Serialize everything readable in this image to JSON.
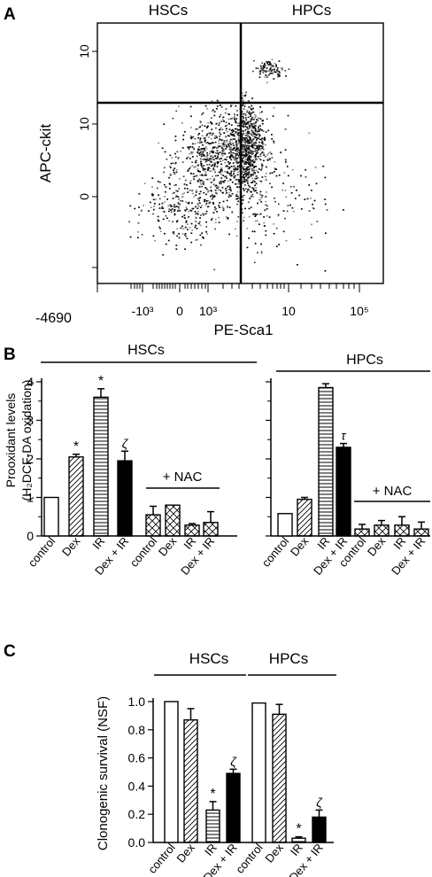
{
  "panels": {
    "A": "A",
    "B": "B",
    "C": "C"
  },
  "chart_data": [
    {
      "panel": "A",
      "type": "scatter",
      "quadrant_labels": [
        "HSCs",
        "HPCs"
      ],
      "xlabel": "PE-Sca1",
      "ylabel": "APC-ckit",
      "x_ticks": [
        "-4690",
        "-10³",
        "0",
        "10³",
        "10",
        "10⁵"
      ],
      "y_ticks": [
        "10",
        "10",
        "0"
      ],
      "grid": false
    },
    {
      "panel": "B-HSCs",
      "type": "bar",
      "ylabel": "Prooxidant levels",
      "ylabel2": "(H₂DCF-DA oxidation)",
      "group_label": "HSCs",
      "sub_label": "+ NAC",
      "categories": [
        "control",
        "Dex",
        "IR",
        "Dex + IR",
        "control",
        "Dex",
        "IR",
        "Dex + IR"
      ],
      "values": [
        1.0,
        2.05,
        3.6,
        1.95,
        0.55,
        0.8,
        0.28,
        0.35
      ],
      "errors": [
        0,
        0.07,
        0.22,
        0.25,
        0.22,
        0,
        0.04,
        0.28
      ],
      "patterns": [
        "open",
        "diagonal",
        "horizontal",
        "solid",
        "crosshatch",
        "crosshatch",
        "crosshatch",
        "crosshatch"
      ],
      "annotations": [
        "",
        "*",
        "*",
        "ζ",
        "",
        "",
        "",
        ""
      ],
      "ylim": [
        0,
        4
      ],
      "yticks": [
        "0",
        "1",
        "2",
        "3",
        "4"
      ]
    },
    {
      "panel": "B-HPCs",
      "type": "bar",
      "group_label": "HPCs",
      "sub_label": "+ NAC",
      "categories": [
        "control",
        "Dex",
        "IR",
        "Dex + IR",
        "control",
        "Dex",
        "IR",
        "Dex + IR"
      ],
      "values": [
        0.58,
        0.95,
        3.85,
        2.3,
        0.18,
        0.28,
        0.28,
        0.18
      ],
      "errors": [
        0,
        0.05,
        0.1,
        0.1,
        0.12,
        0.12,
        0.22,
        0.18
      ],
      "patterns": [
        "open",
        "diagonal",
        "horizontal",
        "solid",
        "crosshatch",
        "crosshatch",
        "crosshatch",
        "crosshatch"
      ],
      "annotations": [
        "",
        "",
        "",
        "τ",
        "",
        "",
        "",
        ""
      ],
      "ylim": [
        0,
        4
      ]
    },
    {
      "panel": "C",
      "type": "bar",
      "ylabel": "Clonogenic survival (NSF)",
      "group_labels": [
        "HSCs",
        "HPCs"
      ],
      "categories": [
        "control",
        "Dex",
        "IR",
        "Dex + IR",
        "control",
        "Dex",
        "IR",
        "Dex + IR"
      ],
      "values": [
        1.0,
        0.87,
        0.23,
        0.49,
        0.99,
        0.91,
        0.03,
        0.18
      ],
      "errors": [
        0,
        0.08,
        0.06,
        0.03,
        0,
        0.07,
        0.01,
        0.05
      ],
      "patterns": [
        "open",
        "diagonal",
        "horizontal",
        "solid",
        "open",
        "diagonal",
        "horizontal",
        "solid"
      ],
      "annotations": [
        "",
        "",
        "*",
        "ζ",
        "",
        "",
        "*",
        "ζ"
      ],
      "ylim": [
        0,
        1.0
      ],
      "yticks": [
        "0.0",
        "0.2",
        "0.4",
        "0.6",
        "0.8",
        "1.0"
      ]
    }
  ]
}
